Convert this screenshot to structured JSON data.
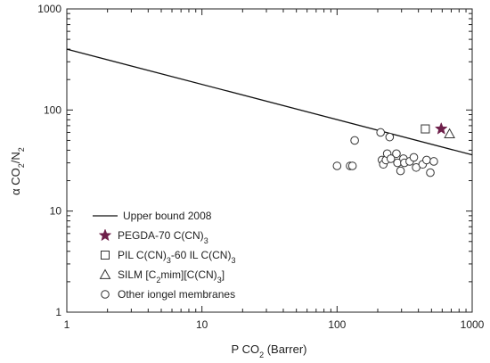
{
  "chart_data": {
    "type": "scatter",
    "xscale": "log",
    "yscale": "log",
    "xlim": [
      1,
      1000
    ],
    "ylim": [
      1,
      1000
    ],
    "xlabel": "P CO2 (Barrer)",
    "ylabel": "α CO2/N2",
    "x_ticks": [
      {
        "value": 1,
        "label": "1"
      },
      {
        "value": 10,
        "label": "10"
      },
      {
        "value": 100,
        "label": "100"
      },
      {
        "value": 1000,
        "label": "1000"
      }
    ],
    "y_ticks": [
      {
        "value": 1,
        "label": "1"
      },
      {
        "value": 10,
        "label": "10"
      },
      {
        "value": 100,
        "label": "100"
      },
      {
        "value": 1000,
        "label": "1000"
      }
    ],
    "grid": false,
    "legend_position": "bottom-left",
    "colors": {
      "axis": "#222222",
      "line": "#111111",
      "star": "#6e1f4a",
      "marker_stroke": "#333333"
    },
    "upper_bound": {
      "name": "Upper bound 2008",
      "points": [
        [
          1,
          400
        ],
        [
          1000,
          36
        ]
      ]
    },
    "series": [
      {
        "name": "PEGDA-70 C(CN)3",
        "marker": "star",
        "points": [
          [
            590,
            65
          ]
        ]
      },
      {
        "name": "PIL C(CN)3-60 IL C(CN)3",
        "marker": "square",
        "points": [
          [
            450,
            65
          ]
        ]
      },
      {
        "name": "SILM [C2mim][C(CN)3]",
        "marker": "triangle",
        "points": [
          [
            680,
            58
          ]
        ]
      },
      {
        "name": "Other iongel membranes",
        "marker": "circle",
        "points": [
          [
            100,
            28
          ],
          [
            125,
            28
          ],
          [
            130,
            28
          ],
          [
            135,
            50
          ],
          [
            210,
            60
          ],
          [
            215,
            32
          ],
          [
            220,
            29
          ],
          [
            230,
            32
          ],
          [
            235,
            37
          ],
          [
            245,
            54
          ],
          [
            250,
            33
          ],
          [
            275,
            37
          ],
          [
            280,
            30
          ],
          [
            295,
            25
          ],
          [
            310,
            33
          ],
          [
            315,
            30
          ],
          [
            345,
            31
          ],
          [
            370,
            34
          ],
          [
            385,
            27
          ],
          [
            430,
            29
          ],
          [
            460,
            32
          ],
          [
            490,
            24
          ],
          [
            520,
            31
          ]
        ]
      }
    ],
    "legend": [
      {
        "marker": "line",
        "text": "Upper bound 2008"
      },
      {
        "marker": "star",
        "text": "PEGDA-70 C(CN)3"
      },
      {
        "marker": "square",
        "text": "PIL C(CN)3-60 IL C(CN)3"
      },
      {
        "marker": "triangle",
        "text": "SILM [C2mim][C(CN)3]"
      },
      {
        "marker": "circle",
        "text": "Other iongel membranes"
      }
    ]
  }
}
